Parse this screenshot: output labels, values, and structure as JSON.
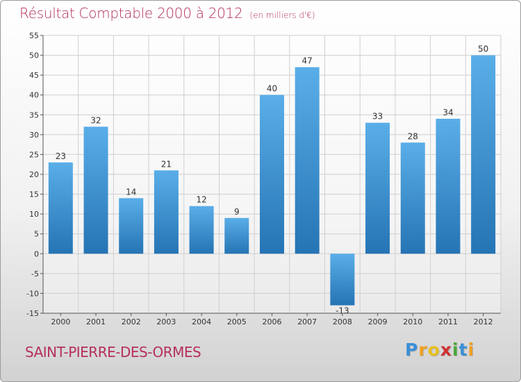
{
  "chart_data": {
    "type": "bar",
    "title": "Résultat Comptable 2000 à 2012",
    "subtitle": "(en milliers d'€)",
    "categories": [
      "2000",
      "2001",
      "2002",
      "2003",
      "2004",
      "2005",
      "2006",
      "2007",
      "2008",
      "2009",
      "2010",
      "2011",
      "2012"
    ],
    "values": [
      23,
      32,
      14,
      21,
      12,
      9,
      40,
      47,
      -13,
      33,
      28,
      34,
      50
    ],
    "ylim": [
      -15,
      55
    ],
    "yticks": [
      -15,
      -10,
      -5,
      0,
      5,
      10,
      15,
      20,
      25,
      30,
      35,
      40,
      45,
      50,
      55
    ],
    "xlabel": "",
    "ylabel": "",
    "grid": true,
    "bar_color_light": "#5aaee8",
    "bar_color_dark": "#2574b4"
  },
  "commune": "SAINT-PIERRE-DES-ORMES",
  "logo": {
    "letters": [
      "P",
      "r",
      "o",
      "x",
      "i",
      "t",
      "i"
    ],
    "colors": [
      "#3a8fd6",
      "#f0a020",
      "#e8c020",
      "#d03030",
      "#4aa838",
      "#3a8fd6",
      "#f0a020"
    ]
  },
  "colors": {
    "title": "#b5305a",
    "grid": "#cfcfcf",
    "axis": "#555555"
  }
}
